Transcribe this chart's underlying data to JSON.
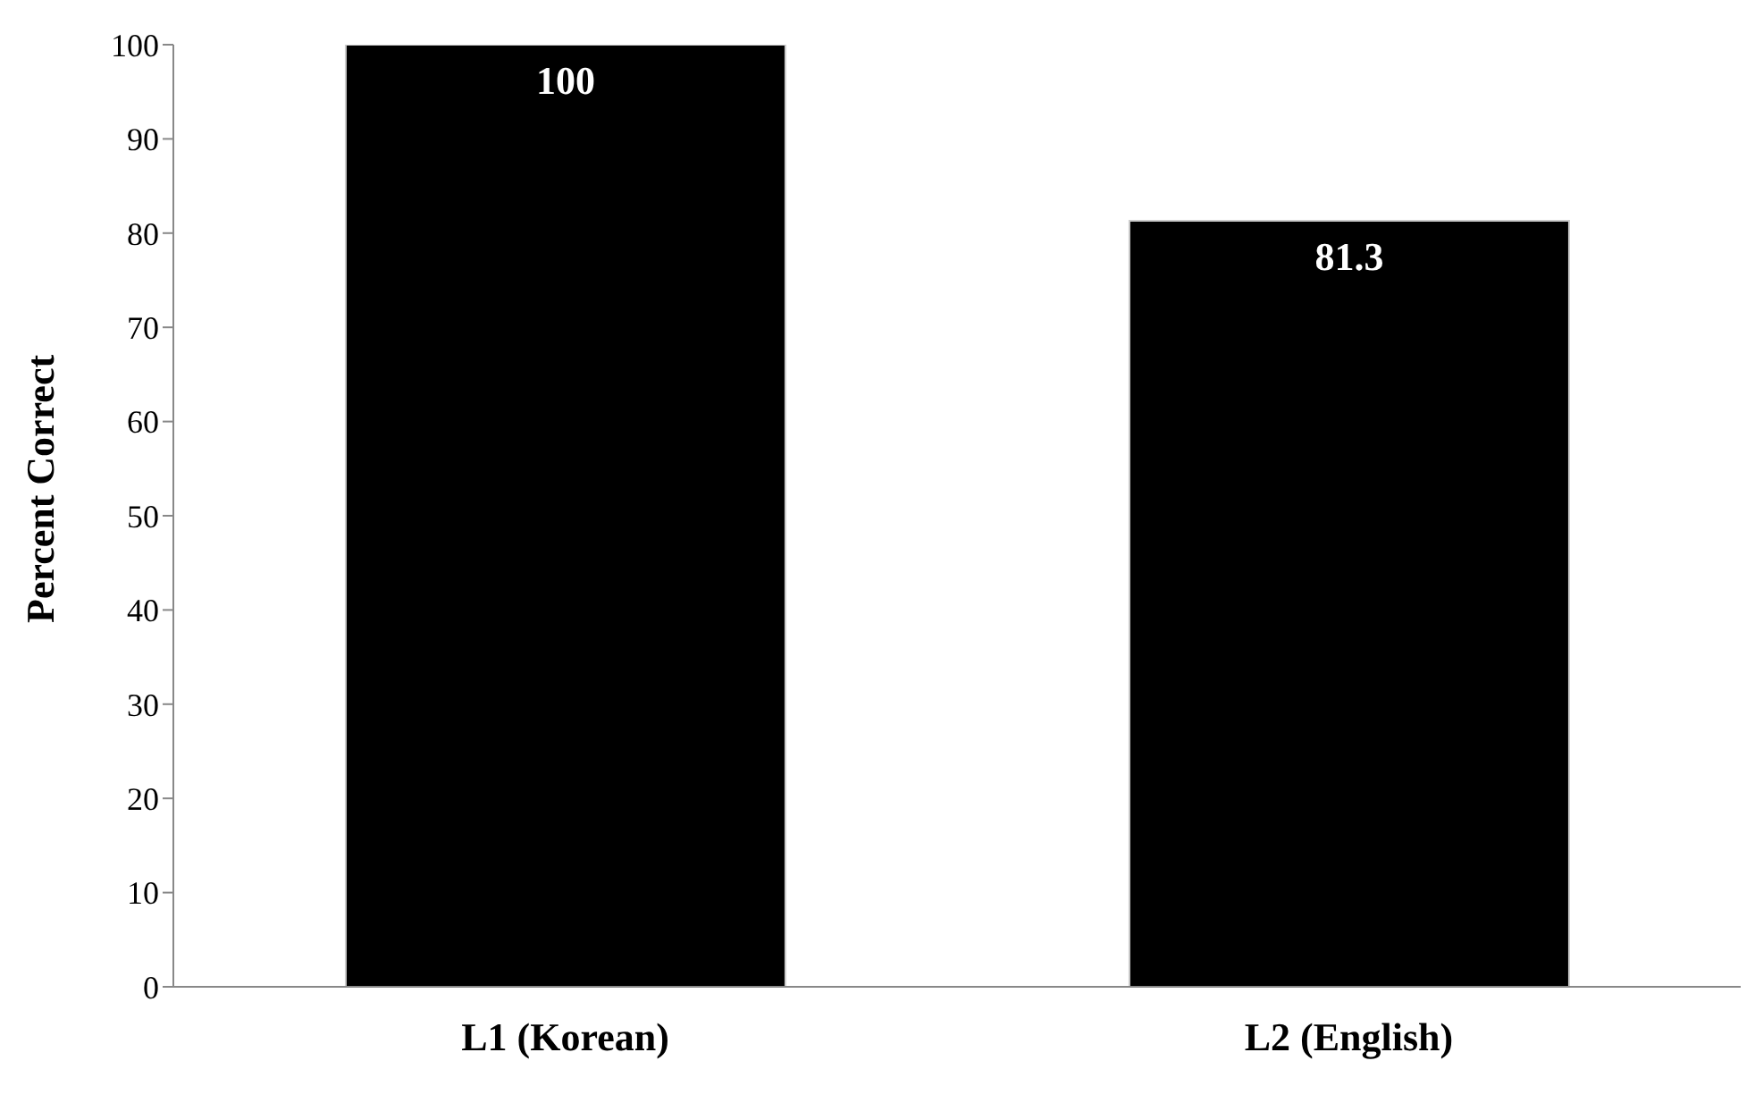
{
  "chart_data": {
    "type": "bar",
    "ylabel": "Percent Correct",
    "categories": [
      "L1 (Korean)",
      "L2 (English)"
    ],
    "values": [
      100,
      81.3
    ],
    "color": "#000000",
    "ylim": [
      0,
      100
    ],
    "yticks": [
      0,
      10,
      20,
      30,
      40,
      50,
      60,
      70,
      80,
      90,
      100
    ],
    "data_labels": true,
    "grid": false,
    "legend": false
  }
}
